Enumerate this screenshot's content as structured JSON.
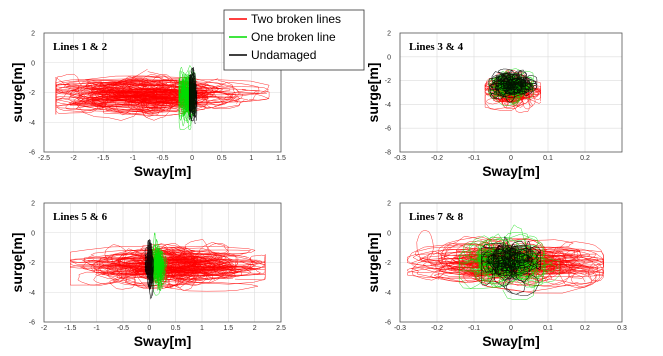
{
  "legend": [
    {
      "label": "Two broken lines",
      "color": "#ff0000"
    },
    {
      "label": "One broken line",
      "color": "#00dd00"
    },
    {
      "label": "Undamaged",
      "color": "#000000"
    }
  ],
  "chart_data": [
    {
      "type": "line",
      "title": "Lines 1 & 2",
      "xlabel": "Sway[m]",
      "ylabel": "surge[m]",
      "xlim": [
        -2.5,
        1.5
      ],
      "ylim": [
        -6,
        2
      ],
      "xticks": [
        -2.5,
        -2,
        -1.5,
        -1,
        -0.5,
        0,
        0.5,
        1,
        1.5
      ],
      "xtick_labels": [
        "-2.5",
        "-2",
        "-1.5",
        "-1",
        "-0.5",
        "0",
        "0.5",
        "1",
        "1.5"
      ],
      "yticks": [
        -6,
        -4,
        -2,
        0,
        2
      ],
      "ytick_labels": [
        "-6",
        "-4",
        "-2",
        "0",
        "2"
      ],
      "grid": true,
      "series": [
        {
          "name": "Two broken lines",
          "color": "#ff0000",
          "center": [
            -0.9,
            -2.2
          ],
          "spread": [
            0.75,
            0.8
          ],
          "range_x": [
            -2.3,
            1.3
          ],
          "range_y": [
            -4.6,
            0.0
          ]
        },
        {
          "name": "One broken line",
          "color": "#00dd00",
          "center": [
            -0.07,
            -2.2
          ],
          "spread": [
            0.08,
            1.0
          ],
          "range_x": [
            -0.22,
            0.05
          ],
          "range_y": [
            -4.5,
            0.3
          ]
        },
        {
          "name": "Undamaged",
          "color": "#000000",
          "center": [
            0.0,
            -2.2
          ],
          "spread": [
            0.035,
            1.0
          ],
          "range_x": [
            -0.05,
            0.08
          ],
          "range_y": [
            -4.3,
            0.1
          ]
        }
      ]
    },
    {
      "type": "line",
      "title": "Lines 3 & 4",
      "xlabel": "Sway[m]",
      "ylabel": "surge[m]",
      "xlim": [
        -0.3,
        0.3
      ],
      "ylim": [
        -8,
        2
      ],
      "xticks": [
        -0.3,
        -0.2,
        -0.1,
        0,
        0.1,
        0.2
      ],
      "xtick_labels": [
        "-0.3",
        "-0.2",
        "-0.1",
        "0",
        "0.1",
        "0.2"
      ],
      "yticks": [
        -8,
        -6,
        -4,
        -2,
        0,
        2
      ],
      "ytick_labels": [
        "-8",
        "-6",
        "-4",
        "-2",
        "0",
        "2"
      ],
      "grid": true,
      "series": [
        {
          "name": "Two broken lines",
          "color": "#ff0000",
          "center": [
            0.0,
            -2.8
          ],
          "spread": [
            0.03,
            0.8
          ],
          "range_x": [
            -0.07,
            0.08
          ],
          "range_y": [
            -4.7,
            -0.5
          ]
        },
        {
          "name": "One broken line",
          "color": "#00dd00",
          "center": [
            0.0,
            -2.5
          ],
          "spread": [
            0.025,
            0.7
          ],
          "range_x": [
            -0.06,
            0.06
          ],
          "range_y": [
            -4.2,
            0.3
          ]
        },
        {
          "name": "Undamaged",
          "color": "#000000",
          "center": [
            0.0,
            -2.2
          ],
          "spread": [
            0.028,
            0.75
          ],
          "range_x": [
            -0.06,
            0.07
          ],
          "range_y": [
            -4.0,
            0.1
          ]
        }
      ]
    },
    {
      "type": "line",
      "title": "Lines 5 & 6",
      "xlabel": "Sway[m]",
      "ylabel": "surge[m]",
      "xlim": [
        -2,
        2.5
      ],
      "ylim": [
        -6,
        2
      ],
      "xticks": [
        -2,
        -1.5,
        -1,
        -0.5,
        0,
        0.5,
        1,
        1.5,
        2,
        2.5
      ],
      "xtick_labels": [
        "-2",
        "-1.5",
        "-1",
        "-0.5",
        "0",
        "0.5",
        "1",
        "1.5",
        "2",
        "2.5"
      ],
      "yticks": [
        -6,
        -4,
        -2,
        0,
        2
      ],
      "ytick_labels": [
        "-6",
        "-4",
        "-2",
        "0",
        "2"
      ],
      "grid": true,
      "series": [
        {
          "name": "Two broken lines",
          "color": "#ff0000",
          "center": [
            0.4,
            -2.2
          ],
          "spread": [
            0.8,
            0.8
          ],
          "range_x": [
            -1.5,
            2.2
          ],
          "range_y": [
            -4.7,
            0.0
          ]
        },
        {
          "name": "One broken line",
          "color": "#00dd00",
          "center": [
            0.18,
            -2.2
          ],
          "spread": [
            0.06,
            0.9
          ],
          "range_x": [
            0.02,
            0.35
          ],
          "range_y": [
            -4.2,
            0.0
          ]
        },
        {
          "name": "Undamaged",
          "color": "#000000",
          "center": [
            0.0,
            -2.2
          ],
          "spread": [
            0.03,
            1.0
          ],
          "range_x": [
            -0.08,
            0.08
          ],
          "range_y": [
            -4.6,
            0.4
          ]
        }
      ]
    },
    {
      "type": "line",
      "title": "Lines 7 & 8",
      "xlabel": "Sway[m]",
      "ylabel": "surge[m]",
      "xlim": [
        -0.3,
        0.3
      ],
      "ylim": [
        -6,
        2
      ],
      "xticks": [
        -0.3,
        -0.2,
        -0.1,
        0,
        0.1,
        0.2,
        0.3
      ],
      "xtick_labels": [
        "-0.3",
        "-0.2",
        "-0.1",
        "0",
        "0.1",
        "0.2",
        "0.3"
      ],
      "yticks": [
        -6,
        -4,
        -2,
        0,
        2
      ],
      "ytick_labels": [
        "-6",
        "-4",
        "-2",
        "0",
        "2"
      ],
      "grid": true,
      "series": [
        {
          "name": "Two broken lines",
          "color": "#ff0000",
          "center": [
            0.0,
            -2.0
          ],
          "spread": [
            0.11,
            0.9
          ],
          "range_x": [
            -0.28,
            0.25
          ],
          "range_y": [
            -4.5,
            0.7
          ]
        },
        {
          "name": "One broken line",
          "color": "#00dd00",
          "center": [
            0.0,
            -2.0
          ],
          "spread": [
            0.055,
            1.0
          ],
          "range_x": [
            -0.14,
            0.13
          ],
          "range_y": [
            -4.5,
            0.7
          ]
        },
        {
          "name": "Undamaged",
          "color": "#000000",
          "center": [
            0.0,
            -2.0
          ],
          "spread": [
            0.035,
            0.95
          ],
          "range_x": [
            -0.08,
            0.08
          ],
          "range_y": [
            -4.3,
            0.5
          ]
        }
      ]
    }
  ]
}
